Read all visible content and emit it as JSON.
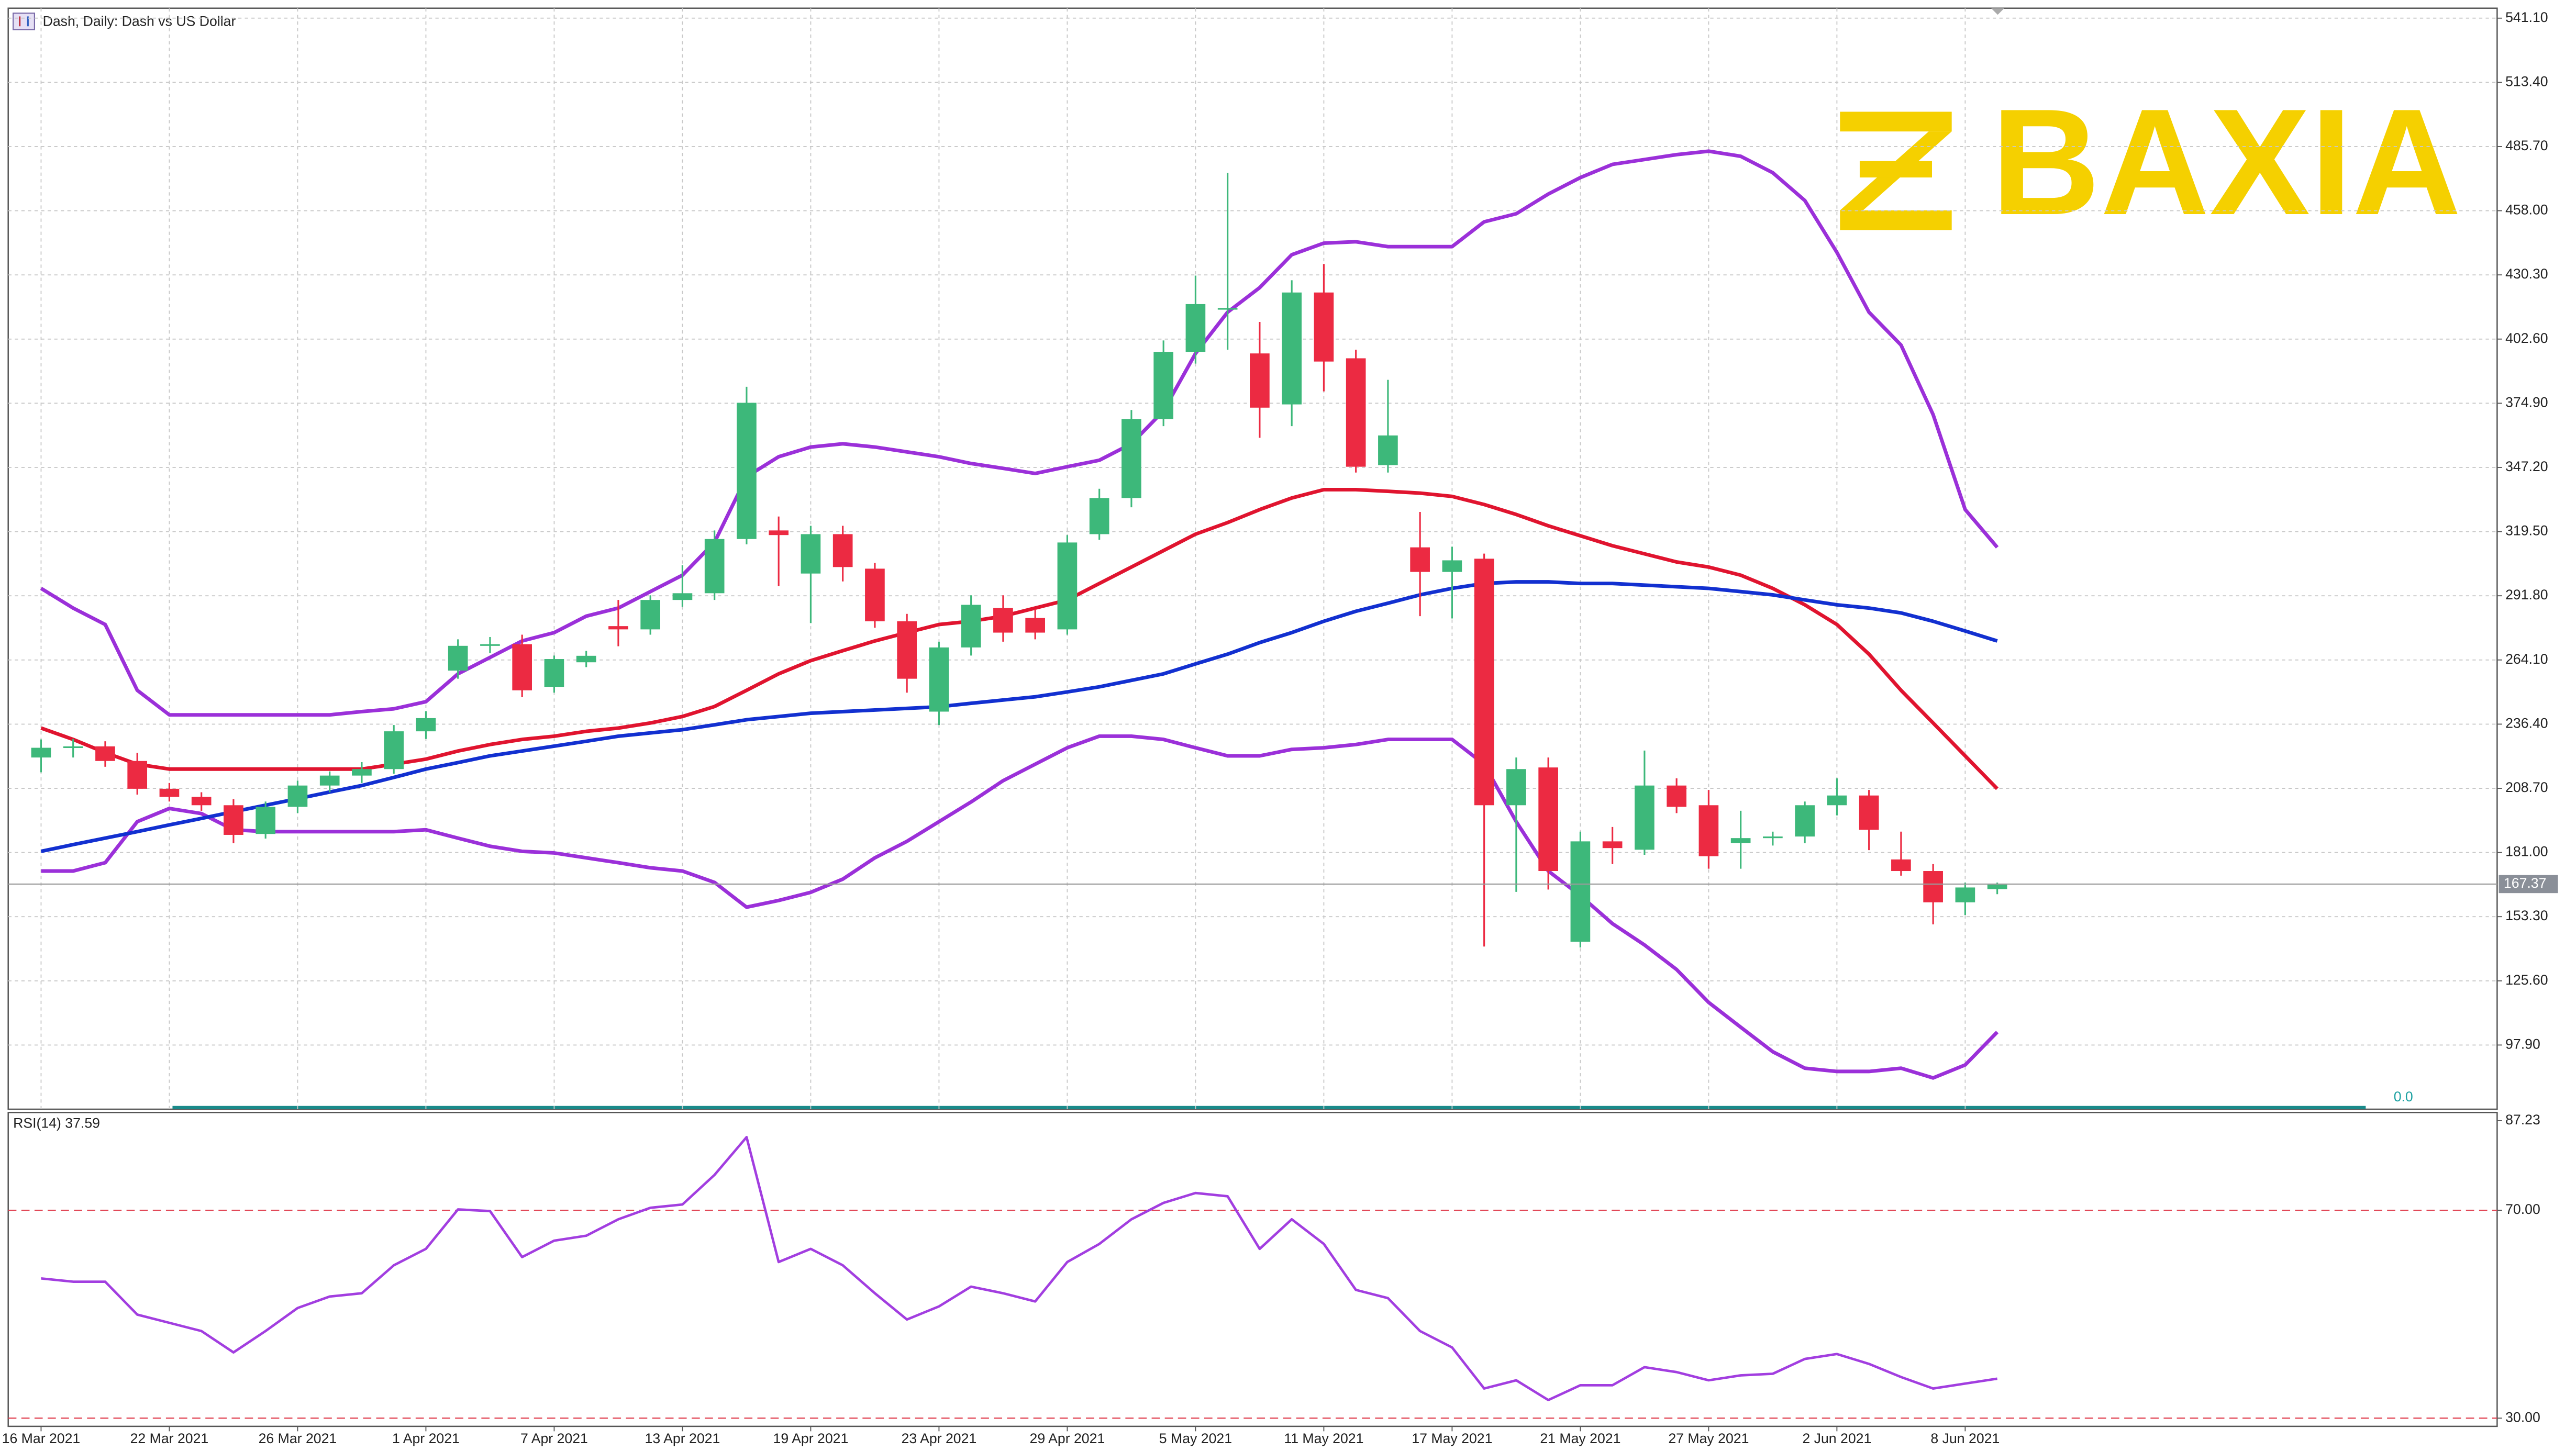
{
  "watermark": "BAXIA",
  "chart_data": [
    {
      "type": "candlestick",
      "title": "Dash, Daily:  Dash vs US Dollar",
      "categories": [
        "16 Mar 2021",
        null,
        null,
        null,
        "22 Mar 2021",
        null,
        null,
        null,
        "26 Mar 2021",
        null,
        null,
        null,
        "1 Apr 2021",
        null,
        null,
        null,
        "7 Apr 2021",
        null,
        null,
        null,
        "13 Apr 2021",
        null,
        null,
        null,
        "19 Apr 2021",
        null,
        null,
        null,
        "23 Apr 2021",
        null,
        null,
        null,
        "29 Apr 2021",
        null,
        null,
        null,
        "5 May 2021",
        null,
        null,
        null,
        "11 May 2021",
        null,
        null,
        null,
        "17 May 2021",
        null,
        null,
        null,
        "21 May 2021",
        null,
        null,
        null,
        "27 May 2021",
        null,
        null,
        null,
        "2 Jun 2021",
        null,
        null,
        null,
        "8 Jun 2021",
        null
      ],
      "ohlc": [
        [
          222.0,
          229.8,
          215.6,
          226.2
        ],
        [
          226.2,
          230.0,
          222.0,
          226.8
        ],
        [
          226.8,
          229.0,
          218.0,
          220.5
        ],
        [
          220.5,
          224.0,
          206.0,
          208.5
        ],
        [
          208.5,
          211.0,
          203.0,
          205.0
        ],
        [
          205.0,
          207.0,
          199.0,
          201.4
        ],
        [
          201.4,
          204.0,
          185.0,
          188.6
        ],
        [
          189.0,
          203.0,
          187.0,
          200.7
        ],
        [
          200.7,
          212.0,
          198.0,
          209.9
        ],
        [
          209.9,
          216.0,
          207.0,
          214.2
        ],
        [
          214.2,
          220.0,
          211.0,
          217.0
        ],
        [
          217.0,
          236.0,
          215.0,
          233.3
        ],
        [
          233.3,
          242.0,
          230.0,
          239.0
        ],
        [
          259.5,
          273.0,
          256.0,
          270.2
        ],
        [
          270.2,
          274.0,
          267.0,
          270.9
        ],
        [
          270.9,
          275.0,
          248.0,
          251.0
        ],
        [
          252.5,
          266.0,
          250.0,
          264.5
        ],
        [
          263.1,
          268.0,
          261.0,
          265.9
        ],
        [
          278.7,
          290.0,
          270.0,
          277.3
        ],
        [
          277.3,
          292.0,
          275.0,
          290.0
        ],
        [
          290.0,
          305.0,
          287.0,
          292.9
        ],
        [
          292.9,
          320.0,
          290.0,
          316.3
        ],
        [
          316.3,
          382.0,
          314.0,
          375.1
        ],
        [
          320.0,
          326.0,
          296.0,
          318.0
        ],
        [
          301.4,
          322.0,
          280.0,
          318.4
        ],
        [
          318.4,
          322.0,
          298.0,
          304.2
        ],
        [
          303.5,
          306.0,
          278.0,
          280.8
        ],
        [
          280.8,
          284.0,
          250.0,
          256.0
        ],
        [
          241.8,
          272.0,
          236.0,
          269.5
        ],
        [
          269.5,
          292.0,
          266.0,
          287.9
        ],
        [
          286.5,
          292.0,
          272.0,
          275.9
        ],
        [
          282.2,
          286.0,
          273.0,
          275.9
        ],
        [
          277.3,
          318.0,
          275.0,
          314.8
        ],
        [
          318.4,
          338.0,
          316.0,
          334.0
        ],
        [
          334.0,
          372.0,
          330.0,
          368.1
        ],
        [
          368.1,
          402.0,
          365.0,
          397.1
        ],
        [
          397.1,
          430.0,
          392.0,
          417.7
        ],
        [
          415.6,
          474.4,
          398.0,
          416.0
        ],
        [
          396.4,
          410.0,
          360.0,
          373.0
        ],
        [
          374.4,
          428.0,
          365.0,
          422.7
        ],
        [
          422.7,
          435.0,
          380.0,
          392.9
        ],
        [
          394.3,
          398.0,
          345.0,
          347.5
        ],
        [
          348.2,
          385.0,
          345.0,
          361.0
        ],
        [
          312.7,
          328.0,
          283.0,
          302.1
        ],
        [
          302.1,
          313.0,
          282.0,
          307.1
        ],
        [
          307.8,
          310.0,
          140.4,
          201.4
        ],
        [
          201.4,
          222.0,
          164.0,
          217.0
        ],
        [
          217.7,
          222.0,
          165.0,
          173.0
        ],
        [
          142.5,
          190.0,
          140.0,
          185.8
        ],
        [
          185.8,
          192.0,
          176.0,
          182.9
        ],
        [
          182.2,
          225.0,
          180.0,
          209.9
        ],
        [
          209.9,
          213.0,
          198.0,
          200.7
        ],
        [
          201.4,
          208.0,
          174.0,
          179.4
        ],
        [
          185.1,
          199.0,
          174.0,
          187.2
        ],
        [
          187.2,
          190.0,
          184.0,
          187.9
        ],
        [
          187.9,
          203.0,
          185.0,
          201.4
        ],
        [
          201.4,
          213.0,
          197.0,
          205.6
        ],
        [
          205.6,
          208.0,
          182.0,
          190.8
        ],
        [
          178.0,
          190.0,
          171.0,
          173.0
        ],
        [
          173.0,
          176.0,
          150.0,
          159.5
        ],
        [
          159.5,
          168.0,
          154.0,
          165.9
        ],
        [
          165.2,
          168.0,
          163.0,
          167.37
        ]
      ],
      "up_color": "#3db87a",
      "down_color": "#ec2a42",
      "overlays": [
        {
          "color": "#9b30d9",
          "width": 2.2,
          "values": [
            295.0,
            286.5,
            279.4,
            251.0,
            240.4,
            240.4,
            240.4,
            240.4,
            240.4,
            240.4,
            241.8,
            243.0,
            246.1,
            258.1,
            265.2,
            272.3,
            275.9,
            283.0,
            286.5,
            293.6,
            300.7,
            314.9,
            343.2,
            351.8,
            356.0,
            357.4,
            356.0,
            353.9,
            351.8,
            348.9,
            346.8,
            344.6,
            347.5,
            350.3,
            357.4,
            371.6,
            396.4,
            414.2,
            424.8,
            439.0,
            444.0,
            444.6,
            442.5,
            442.5,
            442.5,
            453.2,
            456.7,
            465.2,
            472.3,
            478.0,
            480.1,
            482.2,
            483.7,
            481.5,
            474.4,
            462.4,
            440.0,
            414.2,
            400.0,
            370.0,
            329.0,
            312.7
          ]
        },
        {
          "color": "#9b30d9",
          "width": 2.2,
          "values": [
            173.0,
            173.0,
            176.6,
            194.3,
            200.0,
            197.8,
            190.8,
            190.0,
            190.0,
            190.0,
            190.0,
            190.0,
            190.8,
            187.2,
            183.7,
            181.5,
            180.8,
            178.7,
            176.6,
            174.4,
            173.0,
            168.1,
            157.4,
            160.3,
            163.8,
            169.5,
            178.7,
            185.8,
            194.3,
            202.8,
            212.0,
            219.1,
            226.2,
            231.2,
            231.2,
            229.8,
            226.2,
            222.7,
            222.7,
            225.5,
            226.2,
            227.6,
            229.8,
            229.8,
            229.8,
            219.1,
            194.3,
            173.0,
            162.4,
            150.3,
            141.1,
            130.5,
            116.3,
            105.6,
            95.0,
            87.9,
            86.5,
            86.5,
            87.9,
            83.7,
            89.3,
            103.5
          ]
        },
        {
          "color": "#e0142f",
          "width": 2.2,
          "values": [
            234.7,
            229.8,
            224.1,
            219.1,
            217.0,
            217.0,
            217.0,
            217.0,
            217.0,
            217.0,
            217.0,
            219.1,
            221.3,
            224.8,
            227.6,
            229.8,
            231.2,
            233.3,
            234.7,
            236.9,
            239.7,
            244.0,
            251.0,
            258.1,
            263.8,
            268.1,
            272.3,
            275.9,
            279.4,
            280.8,
            283.0,
            286.5,
            290.0,
            297.1,
            304.2,
            311.3,
            318.4,
            323.4,
            329.0,
            334.0,
            337.6,
            337.6,
            336.9,
            336.1,
            334.7,
            331.2,
            326.9,
            322.0,
            317.7,
            313.4,
            309.9,
            306.4,
            304.2,
            300.7,
            295.0,
            287.9,
            279.4,
            266.6,
            251.0,
            236.9,
            222.7,
            208.5
          ]
        },
        {
          "color": "#1230d0",
          "width": 2.2,
          "values": [
            181.5,
            184.4,
            187.2,
            190.0,
            192.9,
            195.7,
            198.6,
            201.4,
            204.2,
            207.1,
            209.9,
            213.4,
            217.0,
            219.8,
            222.7,
            224.8,
            226.9,
            229.0,
            231.2,
            232.6,
            234.0,
            236.1,
            238.3,
            239.7,
            241.1,
            241.8,
            242.5,
            243.2,
            243.9,
            245.4,
            246.8,
            248.2,
            250.3,
            252.5,
            255.3,
            258.1,
            262.4,
            266.6,
            271.6,
            275.9,
            280.8,
            285.1,
            288.6,
            292.2,
            295.0,
            297.1,
            297.8,
            297.8,
            297.1,
            297.1,
            296.4,
            295.7,
            295.0,
            293.6,
            292.2,
            290.0,
            287.9,
            286.5,
            284.4,
            280.8,
            276.6,
            272.3
          ]
        }
      ],
      "last_price": 167.37,
      "indicator_value": "0.0",
      "ylim": [
        70.2,
        545.4
      ],
      "yticks": [
        {
          "value": 541.1,
          "label": "541.10"
        },
        {
          "value": 513.4,
          "label": "513.40"
        },
        {
          "value": 485.7,
          "label": "485.70"
        },
        {
          "value": 458.0,
          "label": "458.00"
        },
        {
          "value": 430.3,
          "label": "430.30"
        },
        {
          "value": 402.6,
          "label": "402.60"
        },
        {
          "value": 374.9,
          "label": "374.90"
        },
        {
          "value": 347.2,
          "label": "347.20"
        },
        {
          "value": 319.5,
          "label": "319.50"
        },
        {
          "value": 291.8,
          "label": "291.80"
        },
        {
          "value": 264.1,
          "label": "264.10"
        },
        {
          "value": 236.4,
          "label": "236.40"
        },
        {
          "value": 208.7,
          "label": "208.70"
        },
        {
          "value": 181.0,
          "label": "181.00"
        },
        {
          "value": 153.3,
          "label": "153.30"
        },
        {
          "value": 125.6,
          "label": "125.60"
        },
        {
          "value": 97.9,
          "label": "97.90"
        }
      ],
      "grid": true
    },
    {
      "type": "line",
      "series": [
        {
          "name": "RSI(14) 37.59",
          "color": "#a23ee0",
          "values": [
            56.88,
            56.25,
            56.25,
            49.92,
            48.34,
            46.76,
            42.65,
            46.76,
            51.19,
            53.4,
            54.03,
            59.41,
            62.57,
            70.16,
            69.84,
            60.99,
            64.15,
            65.1,
            68.26,
            70.47,
            71.11,
            76.8,
            84.07,
            60.04,
            62.57,
            59.41,
            54.03,
            48.98,
            51.5,
            55.3,
            54.03,
            52.45,
            60.04,
            63.52,
            68.26,
            71.42,
            73.32,
            72.69,
            62.57,
            68.26,
            63.52,
            54.67,
            53.09,
            46.76,
            43.6,
            35.7,
            37.28,
            33.48,
            36.33,
            36.33,
            39.81,
            38.86,
            37.28,
            38.23,
            38.54,
            41.39,
            42.34,
            40.44,
            37.91,
            35.7,
            36.65,
            37.59
          ]
        }
      ],
      "levels": [
        70,
        30
      ],
      "ylim": [
        28.42,
        88.81
      ],
      "yticks": [
        87.23,
        {
          "value": 70,
          "label": "70.00"
        },
        {
          "value": 30,
          "label": "30.00"
        }
      ]
    }
  ]
}
